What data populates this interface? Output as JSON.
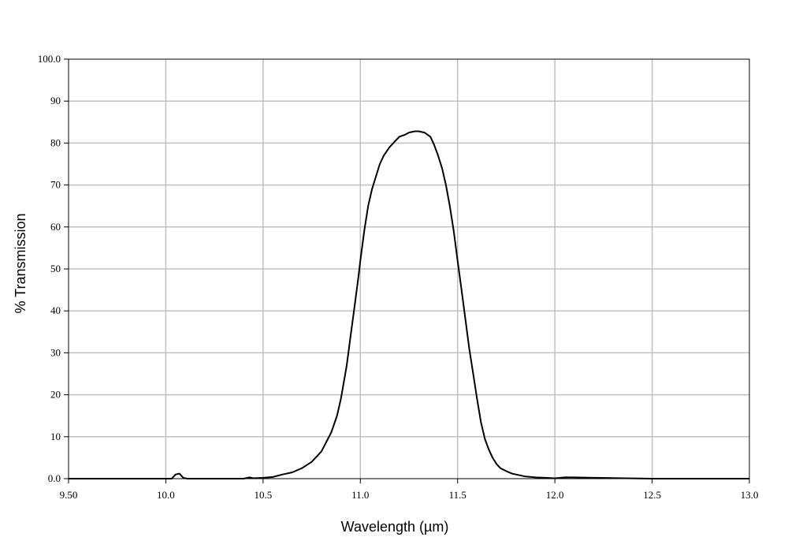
{
  "chart_data": {
    "type": "line",
    "title": "",
    "xlabel": "Wavelength (µm)",
    "ylabel": "% Transmission",
    "xlim": [
      9.5,
      13.0
    ],
    "ylim": [
      0,
      100
    ],
    "grid": true,
    "x_ticks": [
      {
        "value": 9.5,
        "label": "9.50"
      },
      {
        "value": 10.0,
        "label": "10.0"
      },
      {
        "value": 10.5,
        "label": "10.5"
      },
      {
        "value": 11.0,
        "label": "11.0"
      },
      {
        "value": 11.5,
        "label": "11.5"
      },
      {
        "value": 12.0,
        "label": "12.0"
      },
      {
        "value": 12.5,
        "label": "12.5"
      },
      {
        "value": 13.0,
        "label": "13.0"
      }
    ],
    "y_ticks": [
      {
        "value": 0,
        "label": "0.0"
      },
      {
        "value": 10,
        "label": "10"
      },
      {
        "value": 20,
        "label": "20"
      },
      {
        "value": 30,
        "label": "30"
      },
      {
        "value": 40,
        "label": "40"
      },
      {
        "value": 50,
        "label": "50"
      },
      {
        "value": 60,
        "label": "60"
      },
      {
        "value": 70,
        "label": "70"
      },
      {
        "value": 80,
        "label": "80"
      },
      {
        "value": 90,
        "label": "90"
      },
      {
        "value": 100,
        "label": "100.0"
      }
    ],
    "series": [
      {
        "color": "#000000",
        "x": [
          9.5,
          10.0,
          10.03,
          10.05,
          10.07,
          10.09,
          10.11,
          10.4,
          10.43,
          10.45,
          10.5,
          10.55,
          10.6,
          10.65,
          10.7,
          10.75,
          10.8,
          10.85,
          10.88,
          10.9,
          10.93,
          10.95,
          10.97,
          10.99,
          11.0,
          11.02,
          11.04,
          11.06,
          11.08,
          11.1,
          11.12,
          11.15,
          11.18,
          11.2,
          11.23,
          11.25,
          11.28,
          11.3,
          11.33,
          11.36,
          11.38,
          11.4,
          11.42,
          11.44,
          11.46,
          11.48,
          11.5,
          11.52,
          11.54,
          11.56,
          11.58,
          11.6,
          11.62,
          11.64,
          11.66,
          11.68,
          11.7,
          11.72,
          11.75,
          11.78,
          11.8,
          11.85,
          11.9,
          11.95,
          12.0,
          12.05,
          12.1,
          12.2,
          12.5,
          13.0
        ],
        "y": [
          0,
          0,
          0,
          1.0,
          1.2,
          0.2,
          0,
          0,
          0.3,
          0.1,
          0.2,
          0.4,
          1.0,
          1.5,
          2.5,
          4.0,
          6.5,
          11,
          15,
          19,
          27,
          34,
          41,
          48,
          52,
          59,
          65,
          69,
          72,
          75,
          77,
          79,
          80.5,
          81.5,
          82,
          82.5,
          82.8,
          82.8,
          82.5,
          81.5,
          79.5,
          77,
          74,
          70,
          65,
          59,
          52,
          45,
          38,
          31,
          25,
          19,
          13.5,
          9.5,
          7,
          5,
          3.5,
          2.5,
          1.8,
          1.2,
          1.0,
          0.5,
          0.3,
          0.2,
          0.1,
          0.3,
          0.3,
          0.2,
          0,
          0
        ]
      }
    ]
  }
}
